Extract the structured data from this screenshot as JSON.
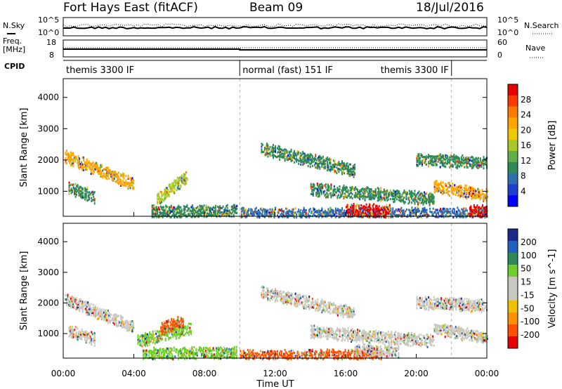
{
  "header": {
    "station": "Fort Hays East (fitACF)",
    "beam": "Beam 09",
    "date": "18/Jul/2016"
  },
  "top_panels": {
    "nsky_label": "N.Sky",
    "nsearch_label": "N.Search",
    "count_tick_high": "10^5",
    "count_tick_low": "10^0",
    "freq_label": "Freq.",
    "freq_unit": "[MHz]",
    "freq_ticks": [
      "18",
      "8"
    ],
    "nave_label": "Nave",
    "nave_ticks": [
      "60",
      "0"
    ],
    "cpid_label": "CPID",
    "cpid_segments": [
      {
        "label": "themis 3300 IF",
        "start_hour": 0,
        "end_hour": 10
      },
      {
        "label": "normal (fast) 151 IF",
        "start_hour": 10,
        "end_hour": 22
      },
      {
        "label": "themis 3300 IF",
        "start_hour": 22,
        "end_hour": 24
      }
    ]
  },
  "x_axis": {
    "label": "Time UT",
    "tick_labels": [
      "00:00",
      "04:00",
      "08:00",
      "12:00",
      "16:00",
      "20:00",
      "00:00"
    ],
    "tick_hours": [
      0,
      4,
      8,
      12,
      16,
      20,
      24
    ]
  },
  "chart_data": [
    {
      "type": "heatmap",
      "ylabel": "Slant Range [km]",
      "y_ticks": [
        1000,
        2000,
        3000,
        4000
      ],
      "ylim": [
        200,
        4600
      ],
      "xlim_hours": [
        0,
        24
      ],
      "colorbar_label": "Power [dB]",
      "colorbar_ticks": [
        "28",
        "24",
        "20",
        "16",
        "12",
        "8",
        "4"
      ],
      "colorbar_colors": [
        "#e60000",
        "#ff3a00",
        "#ff7a00",
        "#ffa500",
        "#f0c800",
        "#a8c828",
        "#5fb04a",
        "#2e8b57",
        "#2f6fb0",
        "#1f3fd0",
        "#0000ff"
      ],
      "bands": [
        {
          "start_hour": 0.1,
          "end_hour": 4.0,
          "range_start_km": 2150,
          "range_end_km": 1250,
          "power_db": 20
        },
        {
          "start_hour": 0.3,
          "end_hour": 1.8,
          "range_start_km": 1150,
          "range_end_km": 850,
          "power_db": 12
        },
        {
          "start_hour": 5.3,
          "end_hour": 7.0,
          "range_start_km": 800,
          "range_end_km": 1500,
          "power_db": 16
        },
        {
          "start_hour": 5.0,
          "end_hour": 9.8,
          "range_start_km": 380,
          "range_end_km": 400,
          "power_db": 12
        },
        {
          "start_hour": 10.0,
          "end_hour": 24.0,
          "range_start_km": 300,
          "range_end_km": 320,
          "power_db": 8
        },
        {
          "start_hour": 11.2,
          "end_hour": 16.5,
          "range_start_km": 2400,
          "range_end_km": 1700,
          "power_db": 12
        },
        {
          "start_hour": 14.0,
          "end_hour": 21.0,
          "range_start_km": 1100,
          "range_end_km": 800,
          "power_db": 12
        },
        {
          "start_hour": 16.0,
          "end_hour": 18.5,
          "range_start_km": 450,
          "range_end_km": 400,
          "power_db": 28
        },
        {
          "start_hour": 21.0,
          "end_hour": 24.0,
          "range_start_km": 1200,
          "range_end_km": 900,
          "power_db": 20
        },
        {
          "start_hour": 20.0,
          "end_hour": 24.0,
          "range_start_km": 2050,
          "range_end_km": 1950,
          "power_db": 12
        },
        {
          "start_hour": 23.0,
          "end_hour": 24.0,
          "range_start_km": 400,
          "range_end_km": 380,
          "power_db": 28
        }
      ]
    },
    {
      "type": "heatmap",
      "ylabel": "Slant Range [km]",
      "y_ticks": [
        1000,
        2000,
        3000,
        4000
      ],
      "ylim": [
        200,
        4600
      ],
      "xlim_hours": [
        0,
        24
      ],
      "colorbar_label": "Velocity [m s^-1]",
      "colorbar_ticks": [
        "200",
        "100",
        "50",
        "15",
        "-15",
        "-50",
        "-100",
        "-200"
      ],
      "colorbar_colors": [
        "#1a2a8c",
        "#1f60c0",
        "#2e8b57",
        "#6ecf2a",
        "#c8c8c0",
        "#c8c8c0",
        "#f0c000",
        "#ff9000",
        "#ff5000",
        "#e60000"
      ],
      "bands": [
        {
          "start_hour": 0.1,
          "end_hour": 4.0,
          "range_start_km": 2150,
          "range_end_km": 1250,
          "velocity": 0
        },
        {
          "start_hour": 0.3,
          "end_hour": 1.8,
          "range_start_km": 1150,
          "range_end_km": 850,
          "velocity": 0
        },
        {
          "start_hour": 4.2,
          "end_hour": 7.2,
          "range_start_km": 800,
          "range_end_km": 1200,
          "velocity": 40
        },
        {
          "start_hour": 5.5,
          "end_hour": 6.8,
          "range_start_km": 1200,
          "range_end_km": 1450,
          "velocity": -60
        },
        {
          "start_hour": 4.5,
          "end_hour": 9.8,
          "range_start_km": 380,
          "range_end_km": 400,
          "velocity": 40
        },
        {
          "start_hour": 10.0,
          "end_hour": 18.0,
          "range_start_km": 300,
          "range_end_km": 320,
          "velocity": -60
        },
        {
          "start_hour": 11.2,
          "end_hour": 16.5,
          "range_start_km": 2400,
          "range_end_km": 1700,
          "velocity": 0
        },
        {
          "start_hour": 14.0,
          "end_hour": 21.0,
          "range_start_km": 1100,
          "range_end_km": 800,
          "velocity": 0
        },
        {
          "start_hour": 16.5,
          "end_hour": 19.0,
          "range_start_km": 500,
          "range_end_km": 450,
          "velocity": 0
        },
        {
          "start_hour": 21.0,
          "end_hour": 24.0,
          "range_start_km": 1200,
          "range_end_km": 900,
          "velocity": 0
        },
        {
          "start_hour": 20.0,
          "end_hour": 24.0,
          "range_start_km": 2050,
          "range_end_km": 1950,
          "velocity": 0
        }
      ]
    }
  ]
}
